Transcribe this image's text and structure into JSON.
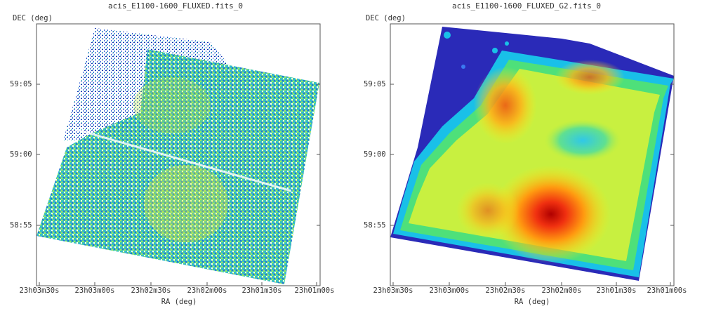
{
  "panels": [
    {
      "title": "acis_E1100-1600_FLUXED.fits_0",
      "ylabel": "DEC (deg)",
      "xlabel": "RA (deg)",
      "yticks": [
        "59:05",
        "59:00",
        "58:55"
      ],
      "xticks": [
        "23h03m30s",
        "23h03m00s",
        "23h02m30s",
        "23h02m00s",
        "23h01m30s",
        "23h01m00s"
      ],
      "colormap": [
        "#0a1a9c",
        "#1f5fe0",
        "#19b7e0",
        "#2fd08a",
        "#8fe040",
        "#f0e81a"
      ]
    },
    {
      "title": "acis_E1100-1600_FLUXED_G2.fits_0",
      "ylabel": "DEC (deg)",
      "xlabel": "RA (deg)",
      "yticks": [
        "59:05",
        "59:00",
        "58:55"
      ],
      "xticks": [
        "23h03m30s",
        "23h03m00s",
        "23h02m30s",
        "23h02m00s",
        "23h01m30s",
        "23h01m00s"
      ],
      "colormap": [
        "#1a1ab0",
        "#2a6cf0",
        "#19c8e8",
        "#34e07a",
        "#b8f040",
        "#ffe818",
        "#ff9a10",
        "#f03010",
        "#b00000"
      ]
    }
  ]
}
